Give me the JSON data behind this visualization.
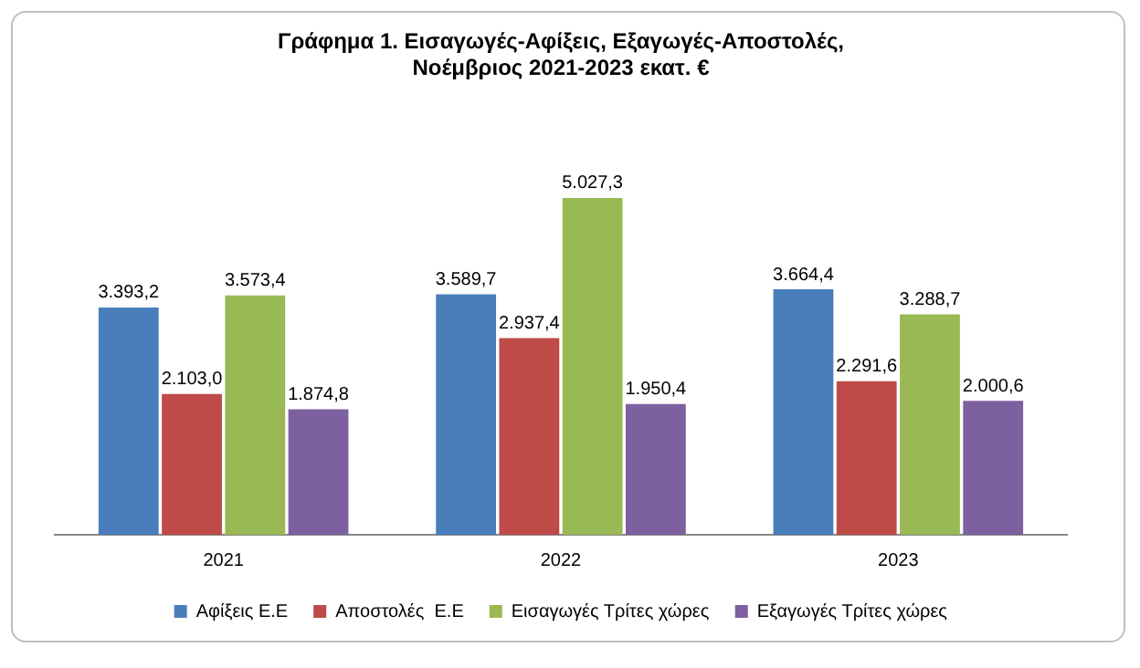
{
  "chart_data": {
    "type": "bar",
    "title": "Γράφημα 1. Εισαγωγές-Αφίξεις, Εξαγωγές-Αποστολές, Νοέμβριος 2021-2023 εκατ. €",
    "categories": [
      "2021",
      "2022",
      "2023"
    ],
    "series": [
      {
        "name": "Αφίξεις Ε.Ε",
        "color": "#4a7ebb",
        "values": [
          3393.2,
          3589.7,
          3664.4
        ],
        "value_labels": [
          "3.393,2",
          "3.589,7",
          "3.664,4"
        ]
      },
      {
        "name": "Αποστολές  Ε.Ε",
        "color": "#be4b48",
        "values": [
          2103.0,
          2937.4,
          2291.6
        ],
        "value_labels": [
          "2.103,0",
          "2.937,4",
          "2.291,6"
        ]
      },
      {
        "name": "Εισαγωγές Τρίτες χώρες",
        "color": "#98b954",
        "values": [
          3573.4,
          5027.3,
          3288.7
        ],
        "value_labels": [
          "3.573,4",
          "5.027,3",
          "3.288,7"
        ]
      },
      {
        "name": "Εξαγωγές Τρίτες χώρες",
        "color": "#7d60a0",
        "values": [
          1874.8,
          1950.4,
          2000.6
        ],
        "value_labels": [
          "1.874,8",
          "1.950,4",
          "2.000,6"
        ]
      }
    ],
    "legend": "bottom",
    "grid": false
  }
}
